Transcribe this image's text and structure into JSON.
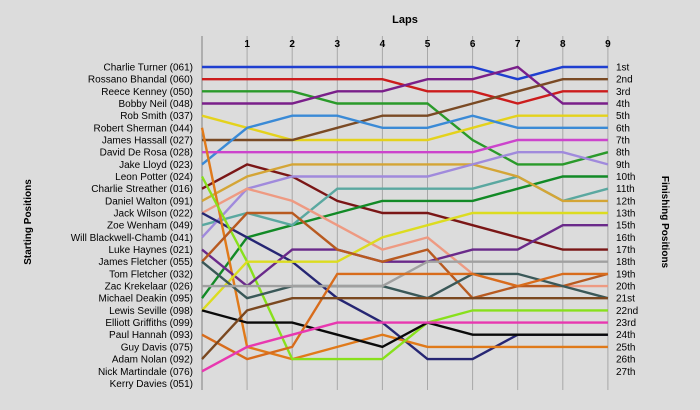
{
  "chart_data": {
    "type": "line",
    "title": "Laps",
    "ylabel_left": "Starting Positions",
    "ylabel_right": "Finishing Positions",
    "x": [
      0,
      1,
      2,
      3,
      4,
      5,
      6,
      7,
      8,
      9
    ],
    "x_tick_labels": [
      "1",
      "2",
      "3",
      "4",
      "5",
      "6",
      "7",
      "8",
      "9"
    ],
    "y_range": [
      1,
      27
    ],
    "y_inverted": true,
    "grid": "vertical",
    "start_labels": [
      "Charlie Turner (061)",
      "Rossano Bhandal (060)",
      "Reece Kenney (050)",
      "Bobby Neil (048)",
      "Rob Smith (037)",
      "Robert Sherman (044)",
      "James Hassall (027)",
      "David De Rosa (028)",
      "Jake Lloyd (023)",
      "Leon Potter (024)",
      "Charlie Streather (016)",
      "Daniel Walton (091)",
      "Jack Wilson (022)",
      "Zoe Wenham (049)",
      "Will Blackwell-Chamb (041)",
      "Luke Haynes (021)",
      "James Fletcher (055)",
      "Tom Fletcher (032)",
      "Zac Krekelaar (026)",
      "Michael Deakin (095)",
      "Lewis Seville (098)",
      "Elliott Griffiths (099)",
      "Paul Hannah (093)",
      "Guy Davis (075)",
      "Adam Nolan (092)",
      "Nick Martindale (076)",
      "Kerry Davies (051)"
    ],
    "finish_labels": [
      "1st",
      "2nd",
      "3rd",
      "4th",
      "5th",
      "6th",
      "7th",
      "8th",
      "9th",
      "10th",
      "11th",
      "12th",
      "13th",
      "15th",
      "16th",
      "17th",
      "18th",
      "19th",
      "20th",
      "21st",
      "22nd",
      "23rd",
      "24th",
      "25th",
      "26th",
      "27th"
    ],
    "series": [
      {
        "color": "#1f3fd0",
        "values": [
          1,
          1,
          1,
          1,
          1,
          1,
          1,
          2,
          1,
          1
        ]
      },
      {
        "color": "#cc1c1c",
        "values": [
          2,
          2,
          2,
          2,
          2,
          3,
          3,
          4,
          3,
          3
        ]
      },
      {
        "color": "#2a9a2a",
        "values": [
          3,
          3,
          3,
          4,
          4,
          4,
          7,
          9,
          9,
          8
        ]
      },
      {
        "color": "#7a1f8a",
        "values": [
          4,
          4,
          4,
          3,
          3,
          2,
          2,
          1,
          4,
          4
        ]
      },
      {
        "color": "#e4d21c",
        "values": [
          5,
          6,
          7,
          7,
          7,
          7,
          6,
          5,
          5,
          5
        ]
      },
      {
        "color": "#7a4a24",
        "values": [
          7,
          7,
          7,
          6,
          5,
          5,
          4,
          3,
          2,
          2
        ]
      },
      {
        "color": "#3a8ad6",
        "values": [
          9,
          6,
          5,
          5,
          6,
          6,
          5,
          6,
          6,
          6
        ]
      },
      {
        "color": "#cc44cc",
        "values": [
          8,
          8,
          8,
          8,
          8,
          8,
          8,
          7,
          7,
          7
        ]
      },
      {
        "color": "#7a1616",
        "values": [
          11,
          9,
          10,
          12,
          13,
          13,
          14,
          15,
          16,
          16
        ]
      },
      {
        "color": "#128a26",
        "values": [
          20,
          15,
          14,
          13,
          12,
          12,
          12,
          11,
          10,
          10
        ]
      },
      {
        "color": "#5aa8a0",
        "values": [
          14,
          13,
          14,
          11,
          11,
          11,
          11,
          10,
          12,
          11
        ]
      },
      {
        "color": "#d4a536",
        "values": [
          12,
          10,
          9,
          9,
          9,
          9,
          9,
          10,
          12,
          12
        ]
      },
      {
        "color": "#a08adc",
        "values": [
          15,
          11,
          10,
          10,
          10,
          10,
          9,
          8,
          8,
          9
        ]
      },
      {
        "color": "#ee9a82",
        "values": [
          13,
          11,
          12,
          14,
          16,
          15,
          18,
          19,
          19,
          19
        ]
      },
      {
        "color": "#262673",
        "values": [
          13,
          15,
          17,
          20,
          22,
          25,
          25,
          23,
          23,
          23
        ]
      },
      {
        "color": "#e07a1a",
        "values": [
          6,
          24,
          25,
          24,
          23,
          24,
          24,
          24,
          24,
          24
        ]
      },
      {
        "color": "#88e01c",
        "values": [
          10,
          17,
          25,
          25,
          25,
          22,
          21,
          21,
          21,
          21
        ]
      },
      {
        "color": "#6a2a8a",
        "values": [
          16,
          19,
          16,
          16,
          17,
          17,
          16,
          16,
          14,
          14
        ]
      },
      {
        "color": "#dcdc20",
        "values": [
          21,
          17,
          17,
          17,
          15,
          14,
          13,
          13,
          13,
          13
        ]
      },
      {
        "color": "#b85a20",
        "values": [
          17,
          13,
          13,
          16,
          17,
          16,
          20,
          19,
          19,
          18
        ]
      },
      {
        "color": "#3a5858",
        "values": [
          17,
          20,
          19,
          19,
          19,
          20,
          18,
          18,
          19,
          20
        ]
      },
      {
        "color": "#0a0a0a",
        "values": [
          21,
          22,
          22,
          23,
          24,
          22,
          23,
          23,
          23,
          23
        ]
      },
      {
        "color": "#a0a0a0",
        "values": [
          19,
          19,
          19,
          19,
          19,
          17,
          17,
          17,
          17,
          17
        ]
      },
      {
        "color": "#d86c1c",
        "values": [
          23,
          25,
          24,
          18,
          18,
          18,
          18,
          19,
          18,
          18
        ]
      },
      {
        "color": "#e838b0",
        "values": [
          26,
          24,
          23,
          22,
          22,
          22,
          22,
          22,
          22,
          22
        ]
      },
      {
        "color": "#7a4820",
        "values": [
          25,
          21,
          20,
          20,
          20,
          20,
          20,
          20,
          20,
          20
        ]
      }
    ]
  }
}
